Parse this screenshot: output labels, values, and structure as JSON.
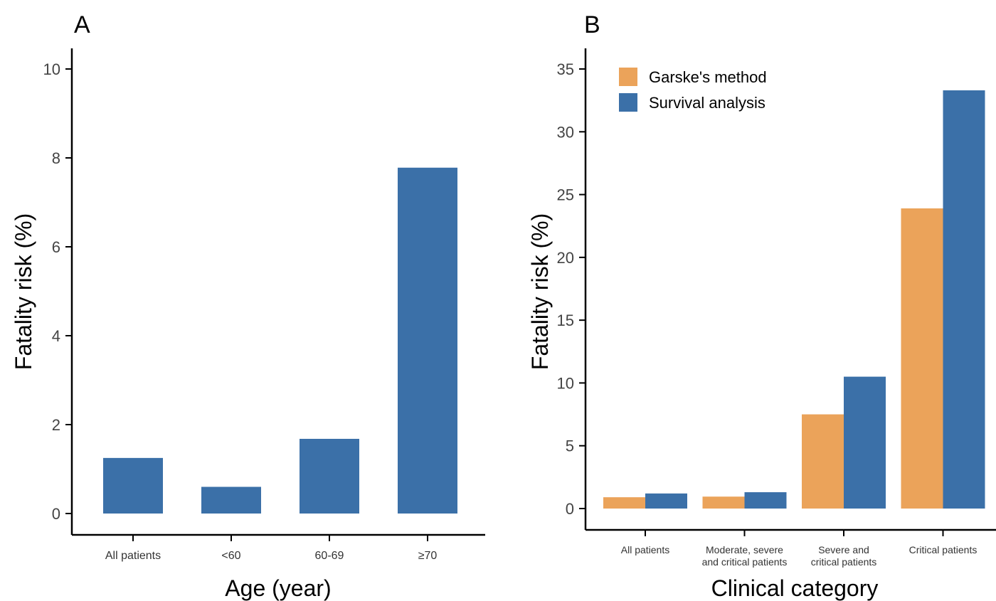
{
  "chart_data": [
    {
      "type": "bar",
      "panel_label": "A",
      "categories": [
        "All patients",
        "<60",
        "60-69",
        "≥70"
      ],
      "series": [
        {
          "values": [
            1.25,
            0.6,
            1.68,
            7.78
          ],
          "color": "#3b70a8"
        }
      ],
      "xlabel": "Age (year)",
      "ylabel": "Fatality risk (%)",
      "ylim": [
        0,
        10
      ],
      "yticks": [
        0,
        2,
        4,
        6,
        8,
        10
      ],
      "grid": false,
      "legend": null
    },
    {
      "type": "bar",
      "panel_label": "B",
      "categories": [
        [
          "All patients"
        ],
        [
          "Moderate, severe",
          "and critical patients"
        ],
        [
          "Severe and",
          "critical patients"
        ],
        [
          "Critical patients"
        ]
      ],
      "series": [
        {
          "name": "Garske's method",
          "values": [
            0.9,
            0.95,
            7.5,
            23.9
          ],
          "color": "#eba35a"
        },
        {
          "name": "Survival analysis",
          "values": [
            1.2,
            1.3,
            10.5,
            33.3
          ],
          "color": "#3b70a8"
        }
      ],
      "xlabel": "Clinical category",
      "ylabel": "Fatality risk (%)",
      "ylim": [
        0,
        35
      ],
      "yticks": [
        0,
        5,
        10,
        15,
        20,
        25,
        30,
        35
      ],
      "grid": false,
      "legend": "top-left"
    }
  ]
}
